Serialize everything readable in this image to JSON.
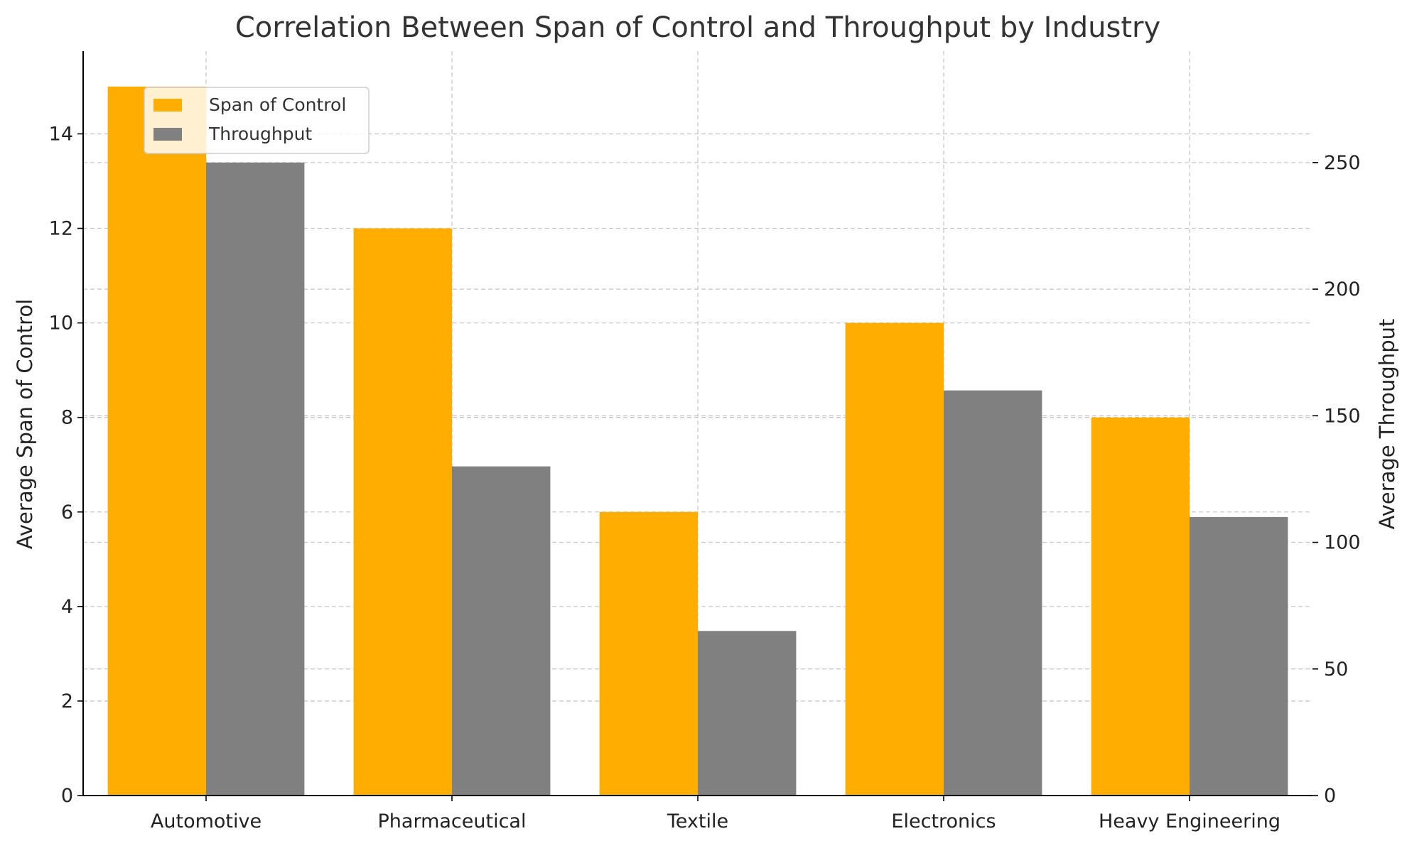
{
  "chart_data": {
    "type": "bar",
    "title": "Correlation Between Span of Control and Throughput by Industry",
    "categories": [
      "Automotive",
      "Pharmaceutical",
      "Textile",
      "Electronics",
      "Heavy Engineering"
    ],
    "series": [
      {
        "name": "Span of Control",
        "axis": "left",
        "color": "#ffae00",
        "values": [
          15,
          12,
          6,
          10,
          8
        ]
      },
      {
        "name": "Throughput",
        "axis": "right",
        "color": "#808080",
        "values": [
          250,
          130,
          65,
          160,
          110
        ]
      }
    ],
    "ylabel": "Average Span of Control",
    "ylabel_right": "Average Throughput",
    "ylim": [
      0,
      15.75
    ],
    "ylim_right": [
      0,
      294
    ],
    "yticks": [
      0,
      2,
      4,
      6,
      8,
      10,
      12,
      14
    ],
    "yticks_right": [
      0,
      50,
      100,
      150,
      200,
      250
    ],
    "grid": true,
    "legend_position": "top-left"
  }
}
